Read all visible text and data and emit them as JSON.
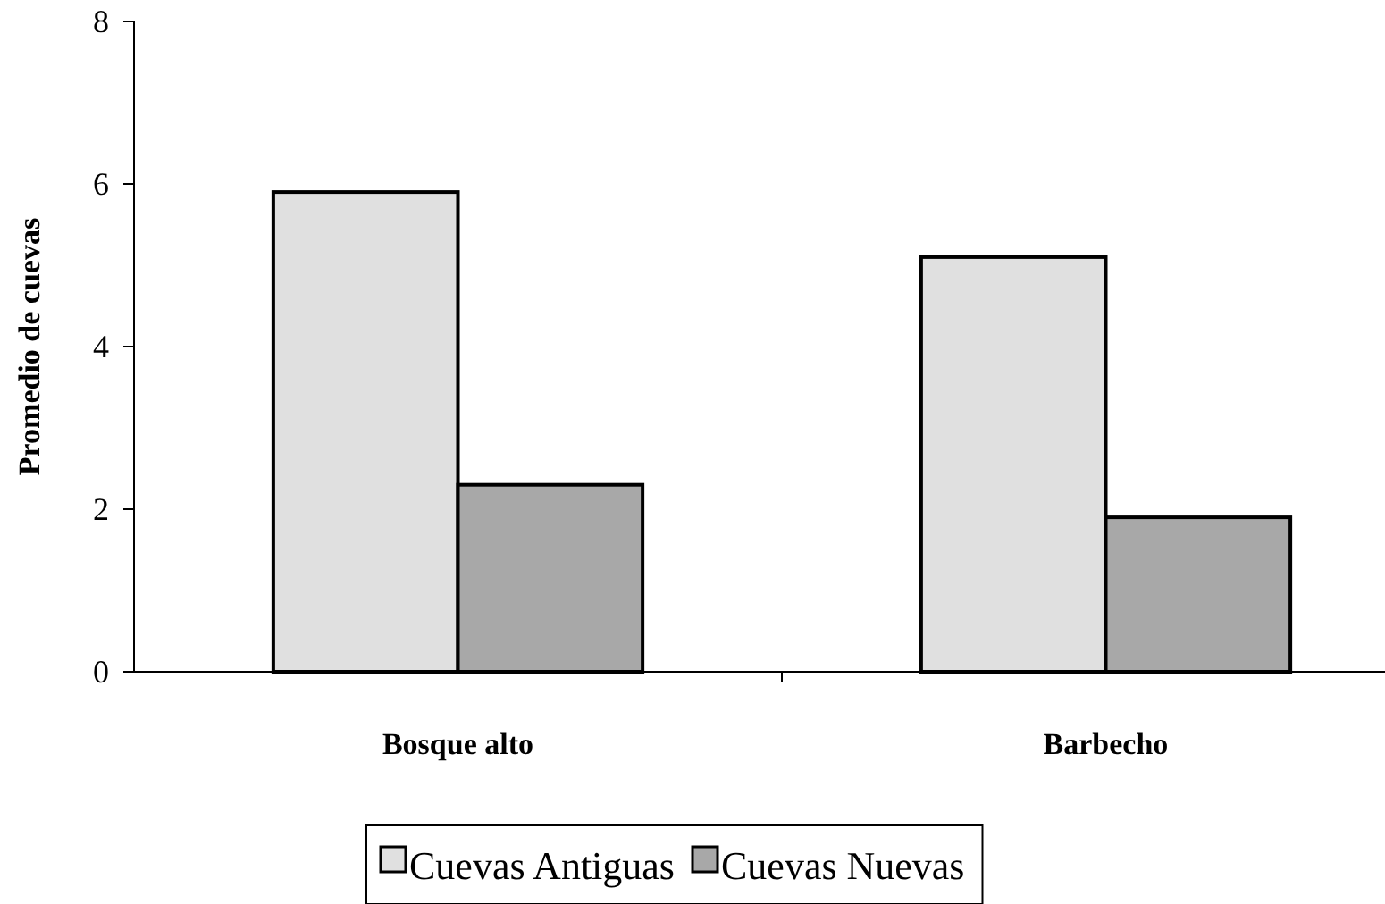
{
  "chart_data": {
    "type": "bar",
    "ylabel": "Promedio de cuevas",
    "categories": [
      "Bosque alto",
      "Barbecho"
    ],
    "series": [
      {
        "name": "Cuevas Antiguas",
        "color": "#e0e0e0",
        "values": [
          5.9,
          5.1
        ]
      },
      {
        "name": "Cuevas Nuevas",
        "color": "#a8a8a8",
        "values": [
          2.3,
          1.9
        ]
      }
    ],
    "ylim": [
      0,
      8
    ],
    "yticks": [
      0,
      2,
      4,
      6,
      8
    ],
    "grid": false,
    "legend": "bottom"
  }
}
